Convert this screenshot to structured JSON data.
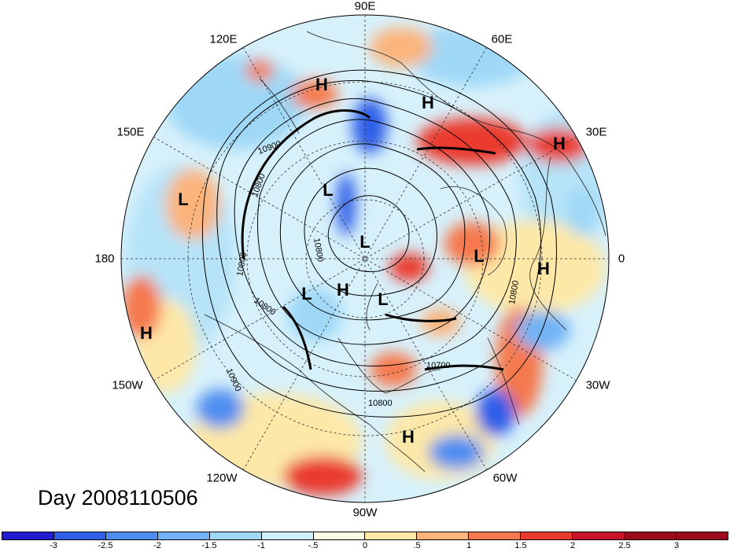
{
  "day_label": "Day 2008110506",
  "longitude_labels": [
    "90E",
    "60E",
    "30E",
    "0",
    "30W",
    "60W",
    "90W",
    "120W",
    "150W",
    "180",
    "150E",
    "120E"
  ],
  "centers": [
    "H",
    "H",
    "H",
    "L",
    "L",
    "L",
    "L",
    "H",
    "L",
    "H",
    "H",
    "L",
    "H"
  ],
  "contour_labels": [
    "10900",
    "10800",
    "10800",
    "10800",
    "10800",
    "10700",
    "10800",
    "10800",
    "10900"
  ],
  "colorbar": {
    "colors": [
      "#1e1bd0",
      "#2f5fe8",
      "#4f8ef0",
      "#71b3f5",
      "#9fd8f7",
      "#cdf0fa",
      "#fffde2",
      "#fde8a8",
      "#fbb47c",
      "#f5794e",
      "#ea3a2e",
      "#c8142a",
      "#9c0a1e"
    ],
    "ticks": [
      "-3",
      "-2.5",
      "-2",
      "-1.5",
      "-1",
      "-.5",
      "0",
      ".5",
      "1",
      "1.5",
      "2",
      "2.5",
      "3"
    ]
  }
}
